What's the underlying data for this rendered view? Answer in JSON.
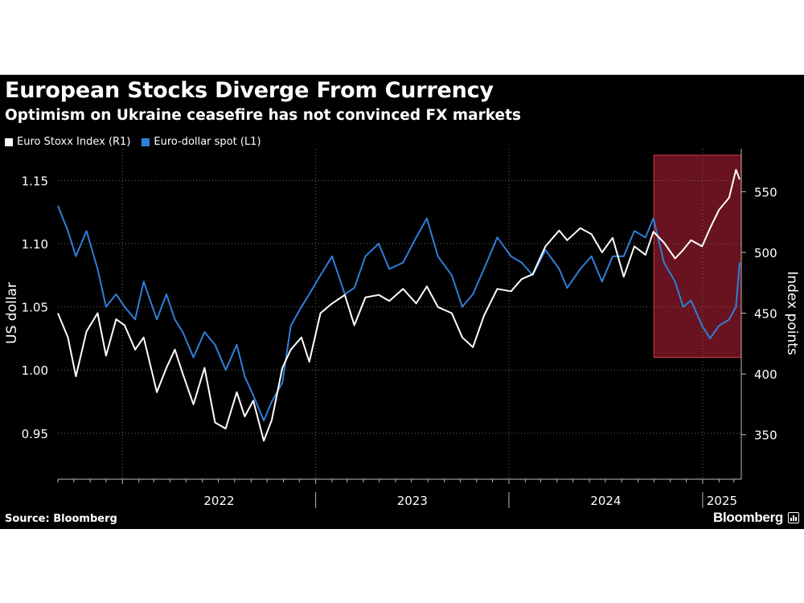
{
  "header": {
    "title": "European Stocks Diverge From Currency",
    "subtitle": "Optimism on Ukraine ceasefire has not convinced FX markets"
  },
  "footer": {
    "source": "Source: Bloomberg",
    "brand": "Bloomberg"
  },
  "colors": {
    "background": "#000000",
    "euro_stoxx": "#ffffff",
    "euro_dollar": "#2f7fd8",
    "highlight": "#8b1a2a",
    "highlight_border": "#d23a4c"
  },
  "chart_data": {
    "type": "line",
    "x_axis": {
      "labels": [
        "2022",
        "2023",
        "2024",
        "2025"
      ],
      "range": [
        "2021-09-01",
        "2025-03-15"
      ]
    },
    "y_left": {
      "label": "US dollar",
      "ticks": [
        "0.95",
        "1.00",
        "1.05",
        "1.10",
        "1.15"
      ],
      "range": [
        0.92,
        1.17
      ]
    },
    "y_right": {
      "label": "Index points",
      "ticks": [
        "350",
        "400",
        "450",
        "500",
        "550"
      ],
      "range": [
        320,
        580
      ]
    },
    "grid": true,
    "legend_position": "top-left",
    "highlight_region": {
      "from": "2024-10-01",
      "to": "2025-03-15",
      "y_left": [
        1.01,
        1.17
      ]
    },
    "series": [
      {
        "name": "Euro Stoxx Index (R1)",
        "axis": "right",
        "color": "#ffffff",
        "points": [
          [
            "2021-09-01",
            450
          ],
          [
            "2021-09-20",
            430
          ],
          [
            "2021-10-05",
            398
          ],
          [
            "2021-10-25",
            435
          ],
          [
            "2021-11-15",
            450
          ],
          [
            "2021-12-01",
            415
          ],
          [
            "2021-12-20",
            445
          ],
          [
            "2022-01-05",
            440
          ],
          [
            "2022-01-25",
            420
          ],
          [
            "2022-02-10",
            430
          ],
          [
            "2022-03-07",
            385
          ],
          [
            "2022-03-25",
            405
          ],
          [
            "2022-04-10",
            420
          ],
          [
            "2022-04-25",
            400
          ],
          [
            "2022-05-15",
            375
          ],
          [
            "2022-06-05",
            405
          ],
          [
            "2022-06-25",
            360
          ],
          [
            "2022-07-15",
            355
          ],
          [
            "2022-08-05",
            385
          ],
          [
            "2022-08-20",
            365
          ],
          [
            "2022-09-05",
            378
          ],
          [
            "2022-09-25",
            345
          ],
          [
            "2022-10-10",
            362
          ],
          [
            "2022-10-30",
            405
          ],
          [
            "2022-11-15",
            420
          ],
          [
            "2022-12-05",
            430
          ],
          [
            "2022-12-20",
            410
          ],
          [
            "2023-01-10",
            450
          ],
          [
            "2023-02-01",
            458
          ],
          [
            "2023-02-25",
            465
          ],
          [
            "2023-03-15",
            440
          ],
          [
            "2023-04-05",
            463
          ],
          [
            "2023-04-30",
            465
          ],
          [
            "2023-05-20",
            460
          ],
          [
            "2023-06-15",
            470
          ],
          [
            "2023-07-10",
            458
          ],
          [
            "2023-07-30",
            472
          ],
          [
            "2023-08-20",
            455
          ],
          [
            "2023-09-15",
            450
          ],
          [
            "2023-10-05",
            430
          ],
          [
            "2023-10-25",
            422
          ],
          [
            "2023-11-15",
            448
          ],
          [
            "2023-12-10",
            470
          ],
          [
            "2024-01-05",
            468
          ],
          [
            "2024-01-25",
            478
          ],
          [
            "2024-02-15",
            482
          ],
          [
            "2024-03-10",
            505
          ],
          [
            "2024-04-05",
            518
          ],
          [
            "2024-04-20",
            510
          ],
          [
            "2024-05-15",
            520
          ],
          [
            "2024-06-05",
            515
          ],
          [
            "2024-06-25",
            500
          ],
          [
            "2024-07-15",
            512
          ],
          [
            "2024-08-05",
            480
          ],
          [
            "2024-08-25",
            505
          ],
          [
            "2024-09-15",
            498
          ],
          [
            "2024-09-30",
            517
          ],
          [
            "2024-10-20",
            508
          ],
          [
            "2024-11-10",
            495
          ],
          [
            "2024-11-25",
            502
          ],
          [
            "2024-12-10",
            510
          ],
          [
            "2024-12-31",
            505
          ],
          [
            "2025-01-15",
            520
          ],
          [
            "2025-02-01",
            535
          ],
          [
            "2025-02-20",
            545
          ],
          [
            "2025-03-05",
            568
          ],
          [
            "2025-03-12",
            560
          ]
        ]
      },
      {
        "name": "Euro-dollar spot (L1)",
        "axis": "left",
        "color": "#2f7fd8",
        "points": [
          [
            "2021-09-01",
            1.13
          ],
          [
            "2021-09-20",
            1.11
          ],
          [
            "2021-10-05",
            1.09
          ],
          [
            "2021-10-25",
            1.11
          ],
          [
            "2021-11-15",
            1.08
          ],
          [
            "2021-12-01",
            1.05
          ],
          [
            "2021-12-20",
            1.06
          ],
          [
            "2022-01-05",
            1.05
          ],
          [
            "2022-01-25",
            1.04
          ],
          [
            "2022-02-10",
            1.07
          ],
          [
            "2022-03-07",
            1.04
          ],
          [
            "2022-03-25",
            1.06
          ],
          [
            "2022-04-10",
            1.04
          ],
          [
            "2022-04-25",
            1.03
          ],
          [
            "2022-05-15",
            1.01
          ],
          [
            "2022-06-05",
            1.03
          ],
          [
            "2022-06-25",
            1.02
          ],
          [
            "2022-07-15",
            1.0
          ],
          [
            "2022-08-05",
            1.02
          ],
          [
            "2022-08-20",
            0.995
          ],
          [
            "2022-09-05",
            0.98
          ],
          [
            "2022-09-25",
            0.96
          ],
          [
            "2022-10-10",
            0.975
          ],
          [
            "2022-10-30",
            0.99
          ],
          [
            "2022-11-15",
            1.035
          ],
          [
            "2022-12-05",
            1.05
          ],
          [
            "2022-12-20",
            1.06
          ],
          [
            "2023-01-10",
            1.075
          ],
          [
            "2023-02-01",
            1.09
          ],
          [
            "2023-02-25",
            1.06
          ],
          [
            "2023-03-15",
            1.065
          ],
          [
            "2023-04-05",
            1.09
          ],
          [
            "2023-04-30",
            1.1
          ],
          [
            "2023-05-20",
            1.08
          ],
          [
            "2023-06-15",
            1.085
          ],
          [
            "2023-07-10",
            1.105
          ],
          [
            "2023-07-30",
            1.12
          ],
          [
            "2023-08-20",
            1.09
          ],
          [
            "2023-09-15",
            1.075
          ],
          [
            "2023-10-05",
            1.05
          ],
          [
            "2023-10-25",
            1.06
          ],
          [
            "2023-11-15",
            1.08
          ],
          [
            "2023-12-10",
            1.105
          ],
          [
            "2024-01-05",
            1.09
          ],
          [
            "2024-01-25",
            1.085
          ],
          [
            "2024-02-15",
            1.075
          ],
          [
            "2024-03-10",
            1.095
          ],
          [
            "2024-04-05",
            1.08
          ],
          [
            "2024-04-20",
            1.065
          ],
          [
            "2024-05-15",
            1.08
          ],
          [
            "2024-06-05",
            1.09
          ],
          [
            "2024-06-25",
            1.07
          ],
          [
            "2024-07-15",
            1.09
          ],
          [
            "2024-08-05",
            1.09
          ],
          [
            "2024-08-25",
            1.11
          ],
          [
            "2024-09-15",
            1.105
          ],
          [
            "2024-09-30",
            1.12
          ],
          [
            "2024-10-20",
            1.085
          ],
          [
            "2024-11-10",
            1.07
          ],
          [
            "2024-11-25",
            1.05
          ],
          [
            "2024-12-10",
            1.055
          ],
          [
            "2024-12-31",
            1.035
          ],
          [
            "2025-01-15",
            1.025
          ],
          [
            "2025-02-01",
            1.035
          ],
          [
            "2025-02-20",
            1.04
          ],
          [
            "2025-03-05",
            1.05
          ],
          [
            "2025-03-12",
            1.085
          ]
        ]
      }
    ]
  }
}
